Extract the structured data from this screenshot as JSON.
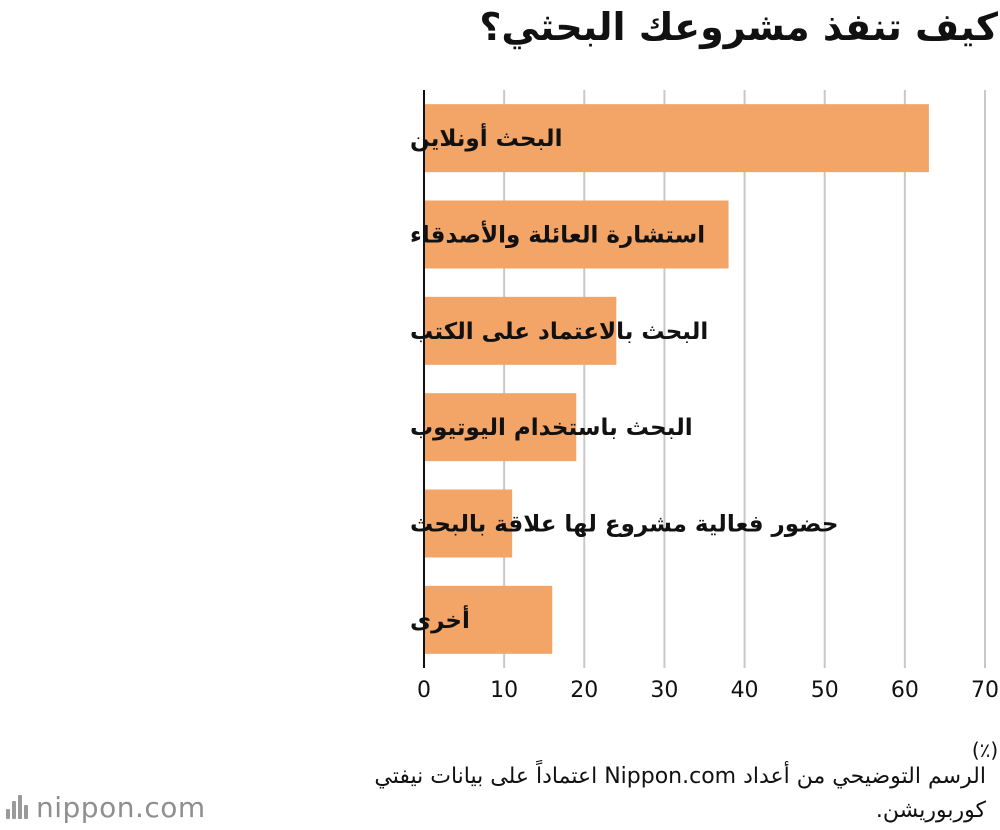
{
  "chart_data": {
    "type": "bar",
    "orientation": "horizontal",
    "title": "كيف تنفذ مشروعك البحثي؟",
    "categories": [
      "البحث أونلاين",
      "استشارة العائلة والأصدقاء",
      "البحث بالاعتماد على الكتب",
      "البحث باستخدام اليوتيوب",
      "حضور فعالية مشروع لها علاقة بالبحث",
      "أخرى"
    ],
    "values": [
      63,
      38,
      24,
      19,
      11,
      16
    ],
    "xlim": [
      0,
      70
    ],
    "xticks": [
      "0",
      "10",
      "20",
      "30",
      "40",
      "50",
      "60",
      "70"
    ],
    "unit_label": "(٪)",
    "grid": true,
    "bar_color": "#f2a566"
  },
  "footer": {
    "source_note": "الرسم التوضيحي من أعداد Nippon.com اعتماداً على بيانات نيفتي كوربوريشن.",
    "logo_text": "nippon.com"
  }
}
